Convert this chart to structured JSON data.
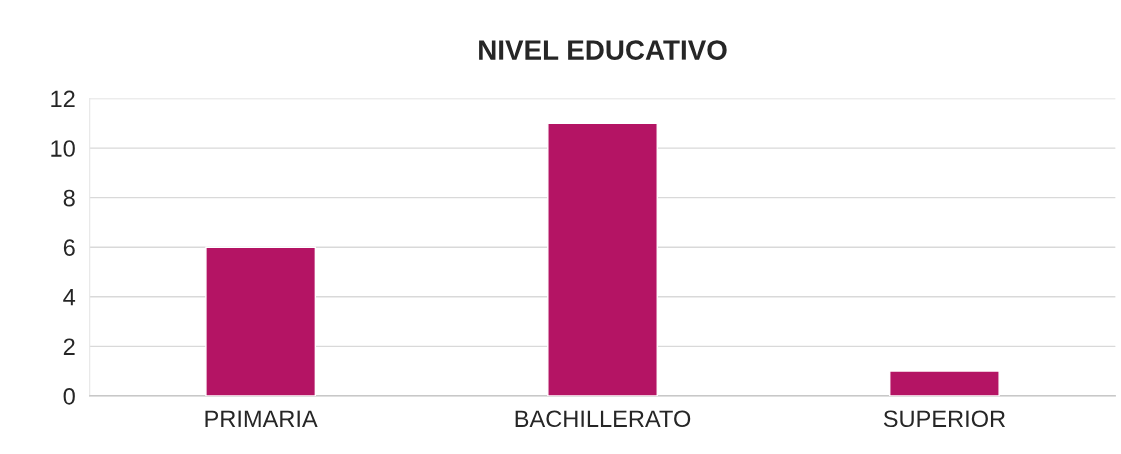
{
  "chart_data": {
    "type": "bar",
    "title": "NIVEL EDUCATIVO",
    "categories": [
      "PRIMARIA",
      "BACHILLERATO",
      "SUPERIOR"
    ],
    "series": [
      {
        "color": "#b41464",
        "values": [
          6,
          11,
          1
        ]
      }
    ],
    "ylim": [
      0,
      12
    ],
    "yticks": [
      0,
      2,
      4,
      6,
      8,
      10,
      12
    ],
    "grid": "y"
  }
}
